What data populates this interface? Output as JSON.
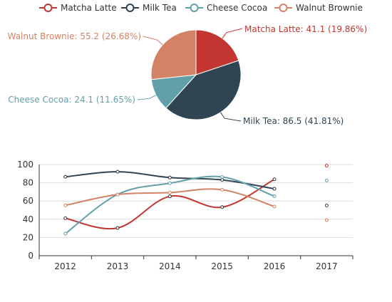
{
  "colors": {
    "Matcha Latte": "#c23531",
    "Milk Tea": "#2f4554",
    "Cheese Cocoa": "#61a0a8",
    "Walnut Brownie": "#d48265",
    "axis": "#333333",
    "grid": "#dddddd"
  },
  "legend": {
    "position": "top-center",
    "items": [
      "Matcha Latte",
      "Milk Tea",
      "Cheese Cocoa",
      "Walnut Brownie"
    ]
  },
  "chart_data": [
    {
      "type": "pie",
      "slices": [
        {
          "name": "Matcha Latte",
          "value": 41.1,
          "label": "Matcha Latte: 41.1 (19.86%)"
        },
        {
          "name": "Milk Tea",
          "value": 86.5,
          "label": "Milk Tea: 86.5 (41.81%)"
        },
        {
          "name": "Cheese Cocoa",
          "value": 24.1,
          "label": "Cheese Cocoa: 24.1 (11.65%)"
        },
        {
          "name": "Walnut Brownie",
          "value": 55.2,
          "label": "Walnut Brownie: 55.2 (26.68%)"
        }
      ]
    },
    {
      "type": "line",
      "smooth": true,
      "categories": [
        "2012",
        "2013",
        "2014",
        "2015",
        "2016",
        "2017"
      ],
      "ylim": [
        0,
        100
      ],
      "yticks": [
        0,
        20,
        40,
        60,
        80,
        100
      ],
      "grid": true,
      "series": [
        {
          "name": "Matcha Latte",
          "values": [
            41.1,
            30.4,
            65.1,
            53.3,
            83.8,
            98.7
          ]
        },
        {
          "name": "Milk Tea",
          "values": [
            86.5,
            92.1,
            85.7,
            83.1,
            73.4,
            55.1
          ]
        },
        {
          "name": "Cheese Cocoa",
          "values": [
            24.1,
            67.2,
            79.5,
            86.4,
            65.2,
            82.5
          ]
        },
        {
          "name": "Walnut Brownie",
          "values": [
            55.2,
            67.1,
            69.2,
            72.4,
            53.9,
            39.1
          ]
        }
      ]
    }
  ]
}
